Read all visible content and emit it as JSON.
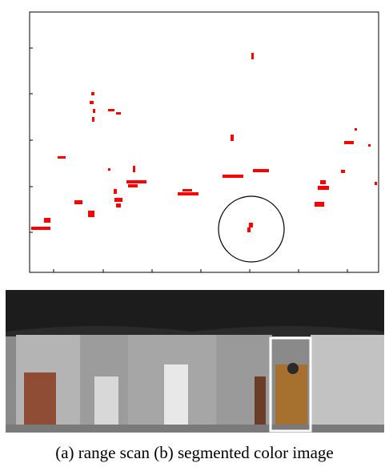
{
  "figure": {
    "caption": "(a) range scan (b) segmented color image"
  }
}
